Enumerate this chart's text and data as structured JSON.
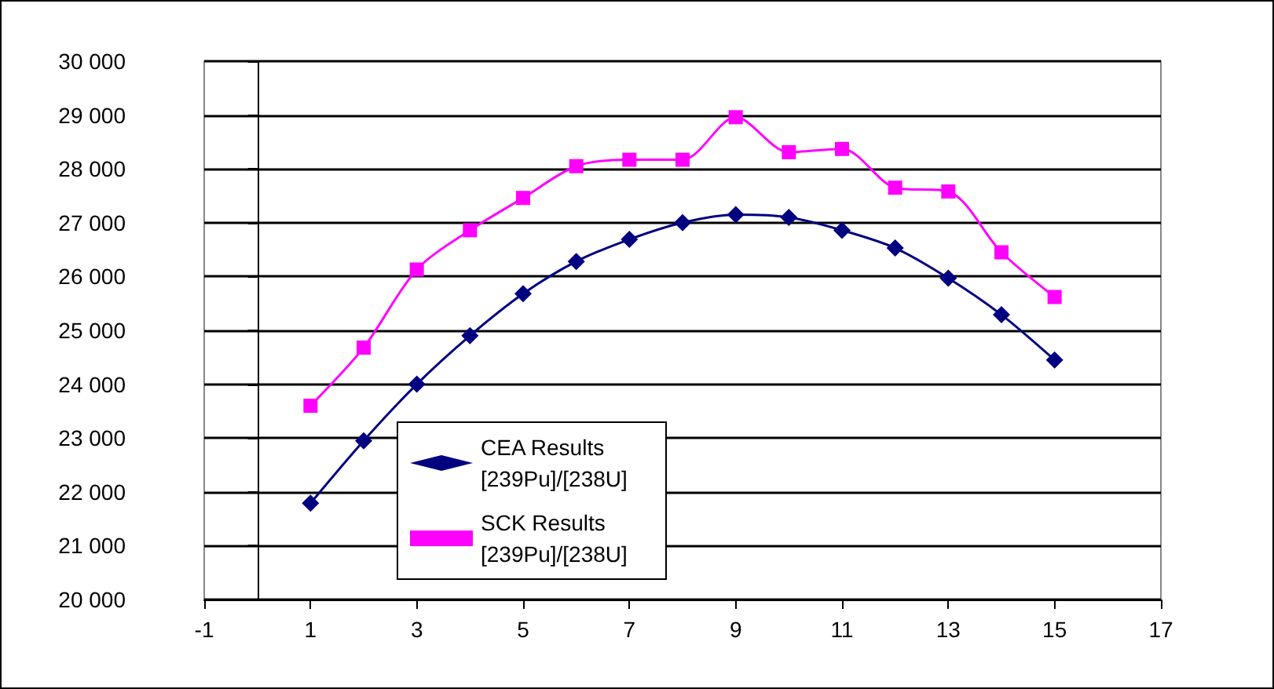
{
  "chart_data": {
    "type": "line",
    "x": [
      1,
      2,
      3,
      4,
      5,
      6,
      7,
      8,
      9,
      10,
      11,
      12,
      13,
      14,
      15
    ],
    "series": [
      {
        "name": "CEA Results [239Pu]/[238U]",
        "color": "#000080",
        "marker": "diamond",
        "values": [
          21790,
          22950,
          24000,
          24900,
          25680,
          26280,
          26690,
          27000,
          27150,
          27100,
          26860,
          26530,
          25970,
          25290,
          24450
        ]
      },
      {
        "name": "SCK Results [239Pu]/[238U]",
        "color": "#ff00ff",
        "marker": "square",
        "values": [
          23600,
          24680,
          26130,
          26860,
          27460,
          28050,
          28170,
          28170,
          28960,
          28310,
          28370,
          27650,
          27580,
          26450,
          25620
        ]
      }
    ],
    "xlim": [
      -1,
      17
    ],
    "xticks": [
      -1,
      1,
      3,
      5,
      7,
      9,
      11,
      13,
      15,
      17
    ],
    "ylim": [
      20000,
      30000
    ],
    "yticks": [
      {
        "value": 20000,
        "label": "20 000"
      },
      {
        "value": 21000,
        "label": "21 000"
      },
      {
        "value": 22000,
        "label": "22 000"
      },
      {
        "value": 23000,
        "label": "23 000"
      },
      {
        "value": 24000,
        "label": "24 000"
      },
      {
        "value": 25000,
        "label": "25 000"
      },
      {
        "value": 26000,
        "label": "26 000"
      },
      {
        "value": 27000,
        "label": "27 000"
      },
      {
        "value": 28000,
        "label": "28 000"
      },
      {
        "value": 29000,
        "label": "29 000"
      },
      {
        "value": 30000,
        "label": "30 000"
      }
    ],
    "grid": "y",
    "legend": "bottom left",
    "line_style": "solid"
  }
}
